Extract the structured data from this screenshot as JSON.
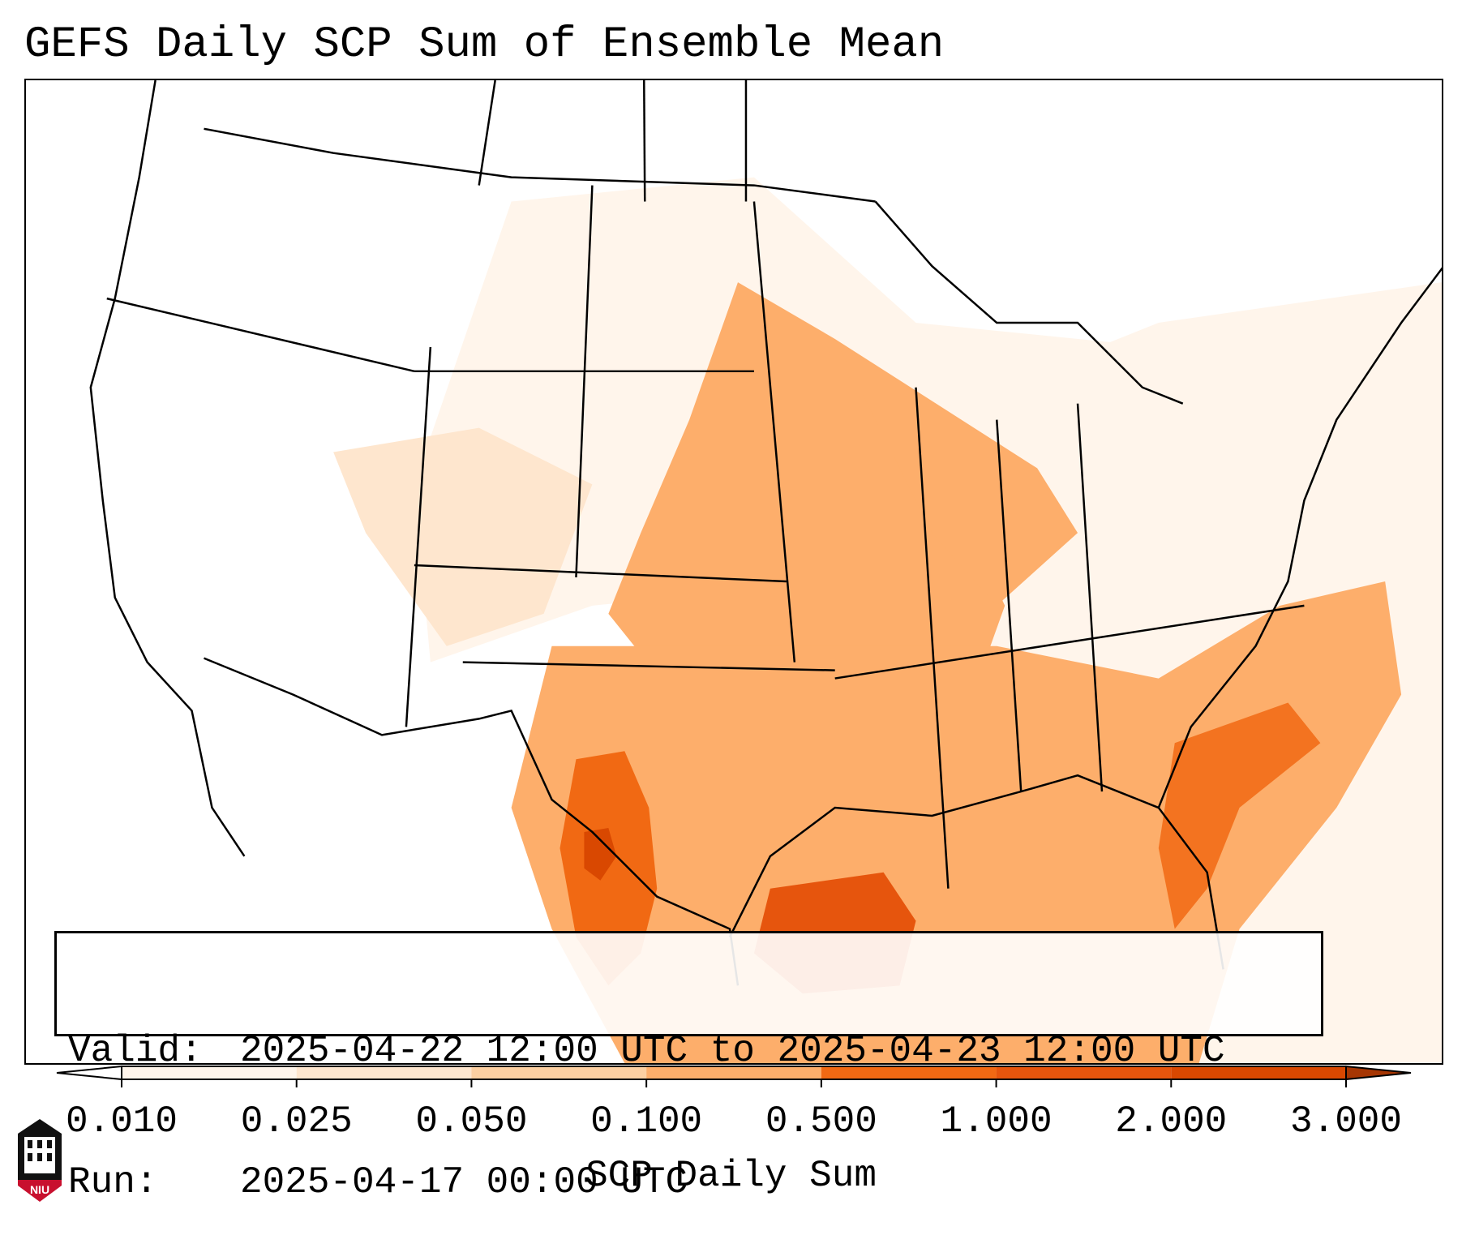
{
  "title": "GEFS Daily SCP Sum of Ensemble Mean",
  "info": {
    "valid_label": "Valid:",
    "valid_value": "2025-04-22 12:00 UTC to 2025-04-23 12:00 UTC",
    "run_label": "Run:",
    "run_value": "2025-04-17 00:00 UTC"
  },
  "colorbar": {
    "ticks": [
      "0.010",
      "0.025",
      "0.050",
      "0.100",
      "0.500",
      "1.000",
      "2.000",
      "3.000"
    ],
    "colors": [
      "#fff5eb",
      "#fee6ce",
      "#fdd0a2",
      "#fdae6b",
      "#f16913",
      "#e6550d",
      "#d94801"
    ],
    "under_color": "#ffffff",
    "over_color": "#a63603",
    "label": "SCP Daily Sum"
  },
  "logo": {
    "icon": "niu-logo-icon",
    "text": "NIU"
  }
}
